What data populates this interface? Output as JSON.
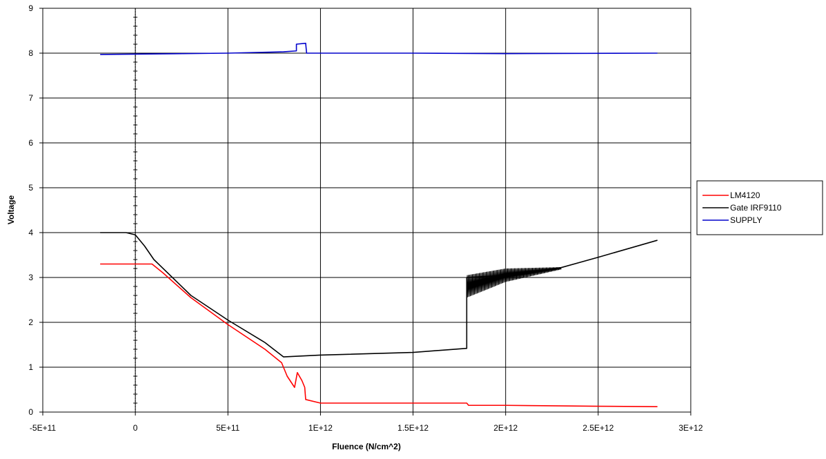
{
  "chart_data": {
    "type": "line",
    "title": "",
    "xlabel": "Fluence (N/cm^2)",
    "ylabel": "Voltage",
    "xlim": [
      -500000000000,
      3000000000000
    ],
    "ylim": [
      0,
      9
    ],
    "x_ticks": [
      -500000000000,
      0,
      500000000000,
      1000000000000,
      1500000000000,
      2000000000000,
      2500000000000,
      3000000000000
    ],
    "x_tick_labels": [
      "-5E+11",
      "0",
      "5E+11",
      "1E+12",
      "1.5E+12",
      "2E+12",
      "2.5E+12",
      "3E+12"
    ],
    "y_ticks": [
      0,
      1,
      2,
      3,
      4,
      5,
      6,
      7,
      8,
      9
    ],
    "y_tick_labels": [
      "0",
      "1",
      "2",
      "3",
      "4",
      "5",
      "6",
      "7",
      "8",
      "9"
    ],
    "grid": true,
    "legend_position": "right",
    "series": [
      {
        "name": "LM4120",
        "color": "#ff0000",
        "points": [
          [
            -190000000000,
            3.3
          ],
          [
            0,
            3.3
          ],
          [
            90000000000,
            3.3
          ],
          [
            150000000000,
            3.1
          ],
          [
            300000000000,
            2.55
          ],
          [
            500000000000,
            1.95
          ],
          [
            700000000000,
            1.4
          ],
          [
            790000000000,
            1.1
          ],
          [
            820000000000,
            0.8
          ],
          [
            860000000000,
            0.55
          ],
          [
            875000000000,
            0.88
          ],
          [
            900000000000,
            0.7
          ],
          [
            915000000000,
            0.55
          ],
          [
            920000000000,
            0.28
          ],
          [
            1000000000000,
            0.2
          ],
          [
            1500000000000,
            0.2
          ],
          [
            1790000000000,
            0.2
          ],
          [
            1800000000000,
            0.15
          ],
          [
            2000000000000,
            0.15
          ],
          [
            2500000000000,
            0.13
          ],
          [
            2820000000000,
            0.12
          ]
        ]
      },
      {
        "name": "Gate IRF9110",
        "color": "#000000",
        "points": [
          [
            -190000000000,
            4.0
          ],
          [
            -50000000000,
            4.0
          ],
          [
            0,
            3.95
          ],
          [
            50000000000,
            3.7
          ],
          [
            100000000000,
            3.4
          ],
          [
            300000000000,
            2.6
          ],
          [
            500000000000,
            2.05
          ],
          [
            700000000000,
            1.55
          ],
          [
            800000000000,
            1.23
          ],
          [
            1000000000000,
            1.27
          ],
          [
            1500000000000,
            1.33
          ],
          [
            1790000000000,
            1.42
          ],
          [
            1790000000000,
            3.0
          ],
          [
            2000000000000,
            3.05
          ],
          [
            2300000000000,
            3.22
          ],
          [
            2500000000000,
            3.45
          ],
          [
            2820000000000,
            3.83
          ]
        ],
        "oscillation": {
          "x_range": [
            1790000000000,
            2300000000000
          ],
          "low_edge": [
            [
              1790000000000,
              2.55
            ],
            [
              2000000000000,
              2.9
            ],
            [
              2300000000000,
              3.18
            ]
          ],
          "high_edge": [
            [
              1790000000000,
              3.05
            ],
            [
              2000000000000,
              3.2
            ],
            [
              2300000000000,
              3.23
            ]
          ]
        }
      },
      {
        "name": "SUPPLY",
        "color": "#0000cc",
        "points": [
          [
            -190000000000,
            7.97
          ],
          [
            500000000000,
            8.0
          ],
          [
            800000000000,
            8.03
          ],
          [
            870000000000,
            8.05
          ],
          [
            870000000000,
            8.2
          ],
          [
            920000000000,
            8.22
          ],
          [
            925000000000,
            8.0
          ],
          [
            1500000000000,
            8.0
          ],
          [
            2000000000000,
            7.99
          ],
          [
            2820000000000,
            8.0
          ]
        ]
      }
    ]
  }
}
